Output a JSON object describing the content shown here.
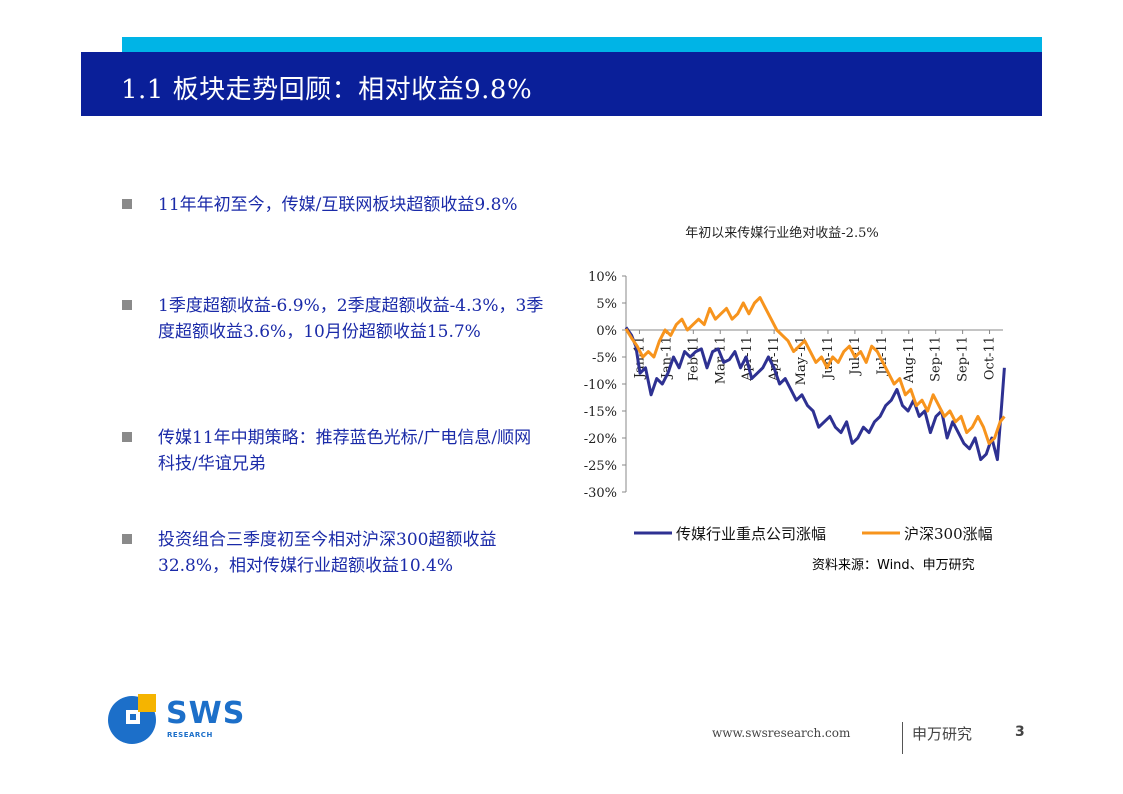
{
  "header": {
    "title": "1.1 板块走势回顾：相对收益9.8%"
  },
  "bullets": [
    {
      "text": "11年年初至今，传媒/互联网板块超额收益9.8%"
    },
    {
      "text": "1季度超额收益-6.9%，2季度超额收益-4.3%，3季度超额收益3.6%，10月份超额收益15.7%"
    },
    {
      "text": "传媒11年中期策略：推荐蓝色光标/广电信息/顺网科技/华谊兄弟"
    },
    {
      "text": "投资组合三季度初至今相对沪深300超额收益32.8%，相对传媒行业超额收益10.4%"
    }
  ],
  "chart_data": {
    "type": "line",
    "title": "年初以来传媒行业绝对收益-2.5%",
    "y_tick_labels": [
      "10%",
      "5%",
      "0%",
      "-5%",
      "-10%",
      "-15%",
      "-20%",
      "-25%",
      "-30%"
    ],
    "x_tick_labels": [
      "Jan-11",
      "Jan-11",
      "Feb-11",
      "Mar-11",
      "Apr-11",
      "Apr-11",
      "May-11",
      "Jun-11",
      "Jul-11",
      "Jul-11",
      "Aug-11",
      "Sep-11",
      "Sep-11",
      "Oct-11"
    ],
    "ylim": [
      -30,
      10
    ],
    "x_range": [
      0,
      13.5
    ],
    "legend_position": "bottom",
    "series": [
      {
        "name": "传媒行业重点公司涨幅",
        "color": "#2e3192",
        "points": [
          [
            0,
            0.5
          ],
          [
            0.2,
            -1
          ],
          [
            0.35,
            -3
          ],
          [
            0.5,
            -8
          ],
          [
            0.7,
            -7
          ],
          [
            0.9,
            -12
          ],
          [
            1.1,
            -9
          ],
          [
            1.3,
            -10
          ],
          [
            1.5,
            -8
          ],
          [
            1.7,
            -5
          ],
          [
            1.9,
            -7
          ],
          [
            2.1,
            -4
          ],
          [
            2.3,
            -5
          ],
          [
            2.5,
            -4
          ],
          [
            2.7,
            -3.5
          ],
          [
            2.9,
            -7
          ],
          [
            3.1,
            -4
          ],
          [
            3.3,
            -3.5
          ],
          [
            3.5,
            -6
          ],
          [
            3.7,
            -5.5
          ],
          [
            3.9,
            -4
          ],
          [
            4.1,
            -7
          ],
          [
            4.3,
            -5
          ],
          [
            4.5,
            -9
          ],
          [
            4.7,
            -8
          ],
          [
            4.9,
            -7
          ],
          [
            5.1,
            -5
          ],
          [
            5.3,
            -7
          ],
          [
            5.5,
            -10
          ],
          [
            5.7,
            -9
          ],
          [
            5.9,
            -11
          ],
          [
            6.1,
            -13
          ],
          [
            6.3,
            -12
          ],
          [
            6.5,
            -14
          ],
          [
            6.7,
            -15
          ],
          [
            6.9,
            -18
          ],
          [
            7.1,
            -17
          ],
          [
            7.3,
            -16
          ],
          [
            7.5,
            -18
          ],
          [
            7.7,
            -19
          ],
          [
            7.9,
            -17
          ],
          [
            8.1,
            -21
          ],
          [
            8.3,
            -20
          ],
          [
            8.5,
            -18
          ],
          [
            8.7,
            -19
          ],
          [
            8.9,
            -17
          ],
          [
            9.1,
            -16
          ],
          [
            9.3,
            -14
          ],
          [
            9.5,
            -13
          ],
          [
            9.7,
            -11
          ],
          [
            9.9,
            -14
          ],
          [
            10.1,
            -15
          ],
          [
            10.3,
            -13
          ],
          [
            10.5,
            -16
          ],
          [
            10.7,
            -15
          ],
          [
            10.9,
            -19
          ],
          [
            11.1,
            -16
          ],
          [
            11.3,
            -15
          ],
          [
            11.5,
            -20
          ],
          [
            11.7,
            -17
          ],
          [
            11.9,
            -19
          ],
          [
            12.1,
            -21
          ],
          [
            12.3,
            -22
          ],
          [
            12.5,
            -20
          ],
          [
            12.7,
            -24
          ],
          [
            12.9,
            -23
          ],
          [
            13.1,
            -20
          ],
          [
            13.3,
            -24
          ],
          [
            13.45,
            -14
          ],
          [
            13.55,
            -7
          ]
        ]
      },
      {
        "name": "沪深300涨幅",
        "color": "#f7941d",
        "points": [
          [
            0,
            0.2
          ],
          [
            0.2,
            -1.5
          ],
          [
            0.4,
            -3
          ],
          [
            0.6,
            -5
          ],
          [
            0.8,
            -4
          ],
          [
            1.0,
            -5
          ],
          [
            1.2,
            -2
          ],
          [
            1.4,
            0
          ],
          [
            1.6,
            -1
          ],
          [
            1.8,
            1
          ],
          [
            2.0,
            2
          ],
          [
            2.2,
            0
          ],
          [
            2.4,
            1
          ],
          [
            2.6,
            2
          ],
          [
            2.8,
            1
          ],
          [
            3.0,
            4
          ],
          [
            3.2,
            2
          ],
          [
            3.4,
            3
          ],
          [
            3.6,
            4
          ],
          [
            3.8,
            2
          ],
          [
            4.0,
            3
          ],
          [
            4.2,
            5
          ],
          [
            4.4,
            3
          ],
          [
            4.6,
            5
          ],
          [
            4.8,
            6
          ],
          [
            5.0,
            4
          ],
          [
            5.2,
            2
          ],
          [
            5.4,
            0
          ],
          [
            5.6,
            -1
          ],
          [
            5.8,
            -2
          ],
          [
            6.0,
            -4
          ],
          [
            6.2,
            -3
          ],
          [
            6.4,
            -2
          ],
          [
            6.6,
            -4
          ],
          [
            6.8,
            -6
          ],
          [
            7.0,
            -5
          ],
          [
            7.2,
            -7
          ],
          [
            7.4,
            -5
          ],
          [
            7.6,
            -6
          ],
          [
            7.8,
            -4
          ],
          [
            8.0,
            -3
          ],
          [
            8.2,
            -5
          ],
          [
            8.4,
            -4
          ],
          [
            8.6,
            -6
          ],
          [
            8.8,
            -3
          ],
          [
            9.0,
            -4
          ],
          [
            9.2,
            -6
          ],
          [
            9.4,
            -8
          ],
          [
            9.6,
            -10
          ],
          [
            9.8,
            -9
          ],
          [
            10.0,
            -12
          ],
          [
            10.2,
            -11
          ],
          [
            10.4,
            -14
          ],
          [
            10.6,
            -13
          ],
          [
            10.8,
            -15
          ],
          [
            11.0,
            -12
          ],
          [
            11.2,
            -14
          ],
          [
            11.4,
            -16
          ],
          [
            11.6,
            -15
          ],
          [
            11.8,
            -17
          ],
          [
            12.0,
            -16
          ],
          [
            12.2,
            -19
          ],
          [
            12.4,
            -18
          ],
          [
            12.6,
            -16
          ],
          [
            12.8,
            -18
          ],
          [
            13.0,
            -21
          ],
          [
            13.2,
            -20
          ],
          [
            13.4,
            -17
          ],
          [
            13.55,
            -16
          ]
        ]
      }
    ]
  },
  "source_note": "资料来源：Wind、申万研究",
  "footer": {
    "url": "www.swsresearch.com",
    "name": "申万研究",
    "page": "3"
  },
  "logo": {
    "text": "SWS",
    "sub": "RESEARCH"
  }
}
